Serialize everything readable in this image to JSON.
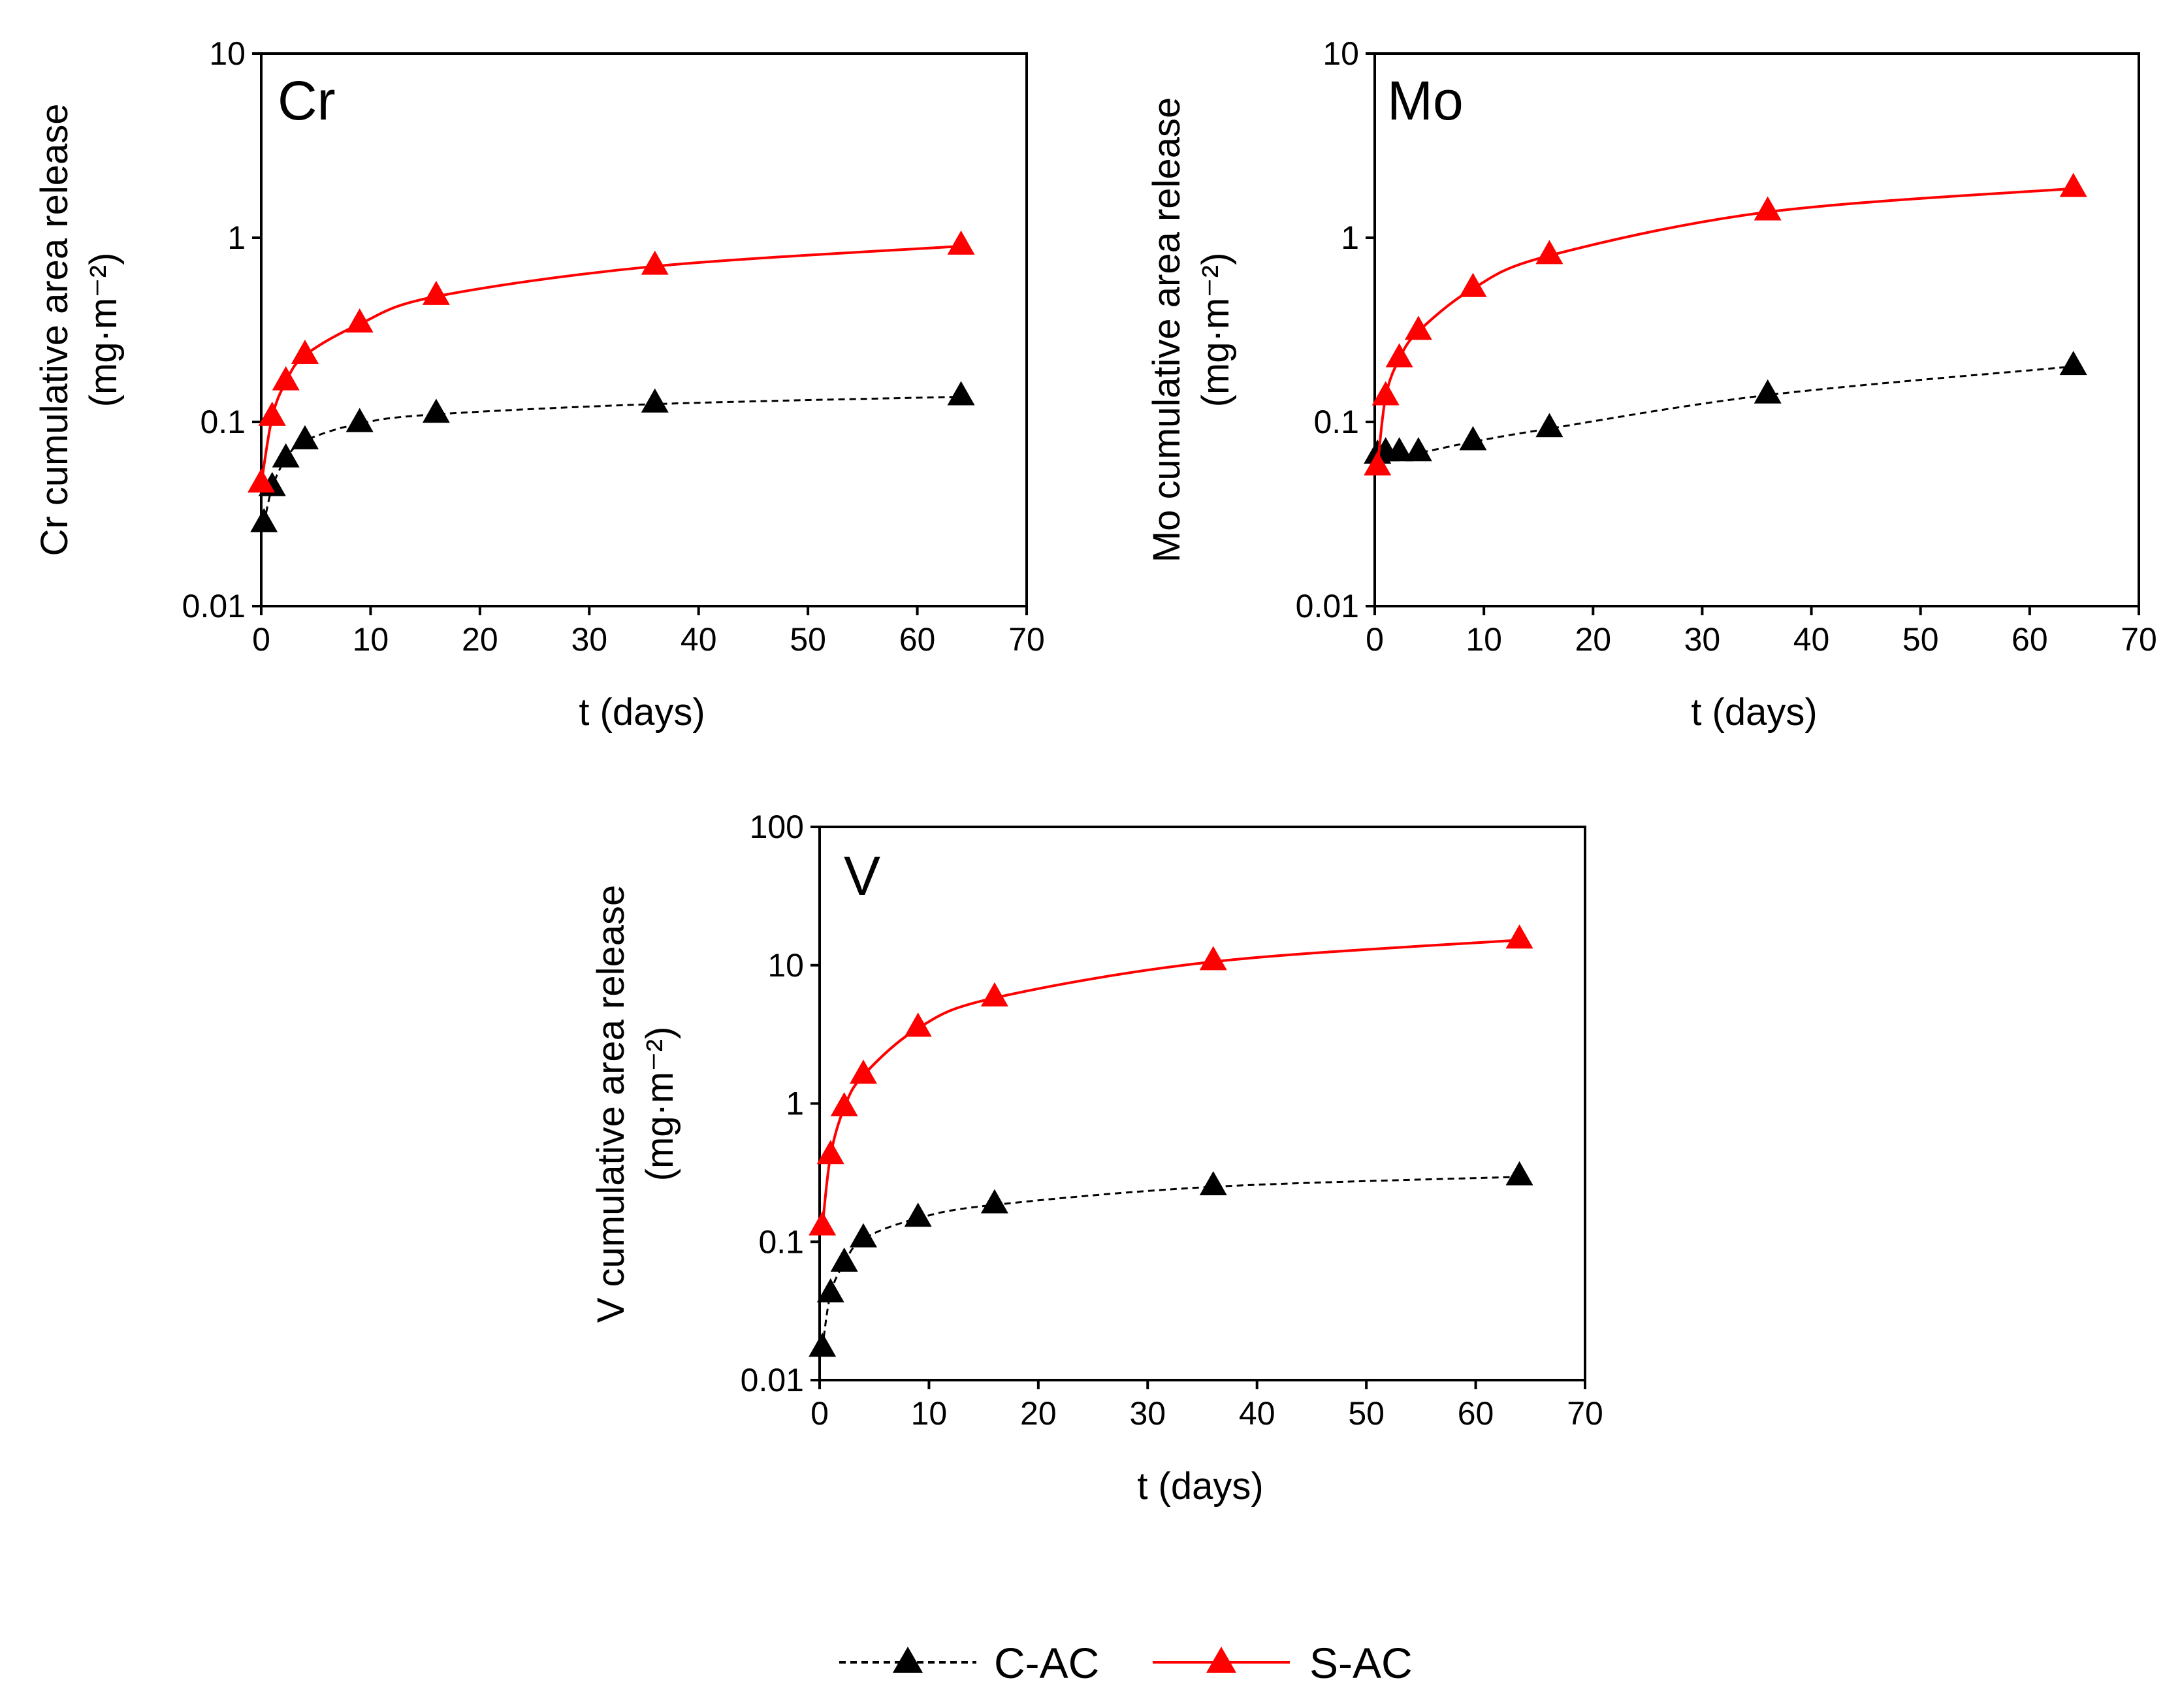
{
  "chart_data": [
    {
      "type": "line",
      "panel_label": "Cr",
      "xlabel": "t (days)",
      "ylabel": "Cr cumulative area release",
      "ylabel_units": "(mg·m⁻²)",
      "yscale": "log",
      "xlim": [
        0,
        70
      ],
      "ylim": [
        0.01,
        10
      ],
      "x_ticks": [
        "0",
        "10",
        "20",
        "30",
        "40",
        "50",
        "60",
        "70"
      ],
      "y_ticks": [
        "0.01",
        "0.1",
        "1",
        "10"
      ],
      "grid": false,
      "series": [
        {
          "name": "C-AC",
          "color": "#000000",
          "line": "dashed",
          "marker": "triangle",
          "x": [
            0.25,
            1,
            2.25,
            4,
            9,
            16,
            36,
            64
          ],
          "y": [
            0.028,
            0.044,
            0.063,
            0.079,
            0.098,
            0.11,
            0.125,
            0.137
          ]
        },
        {
          "name": "S-AC",
          "color": "#ff0000",
          "line": "solid",
          "marker": "triangle",
          "x": [
            0,
            1,
            2.25,
            4,
            9,
            16,
            36,
            64
          ],
          "y": [
            0.046,
            0.106,
            0.165,
            0.23,
            0.34,
            0.48,
            0.7,
            0.9
          ]
        }
      ]
    },
    {
      "type": "line",
      "panel_label": "Mo",
      "xlabel": "t (days)",
      "ylabel": "Mo cumulative area release",
      "ylabel_units": "(mg·m⁻²)",
      "yscale": "log",
      "xlim": [
        0,
        70
      ],
      "ylim": [
        0.01,
        10
      ],
      "x_ticks": [
        "0",
        "10",
        "20",
        "30",
        "40",
        "50",
        "60",
        "70"
      ],
      "y_ticks": [
        "0.01",
        "0.1",
        "1",
        "10"
      ],
      "grid": false,
      "series": [
        {
          "name": "C-AC",
          "color": "#000000",
          "line": "dashed",
          "marker": "triangle",
          "x": [
            0.25,
            1,
            2.25,
            4,
            9,
            16,
            36,
            64
          ],
          "y": [
            0.066,
            0.068,
            0.068,
            0.068,
            0.078,
            0.092,
            0.14,
            0.2
          ]
        },
        {
          "name": "S-AC",
          "color": "#ff0000",
          "line": "solid",
          "marker": "triangle",
          "x": [
            0.25,
            1,
            2.25,
            4,
            9,
            16,
            36,
            64
          ],
          "y": [
            0.057,
            0.137,
            0.22,
            0.31,
            0.53,
            0.8,
            1.38,
            1.85
          ]
        }
      ]
    },
    {
      "type": "line",
      "panel_label": "V",
      "xlabel": "t (days)",
      "ylabel": "V cumulative area release",
      "ylabel_units": "(mg·m⁻²)",
      "yscale": "log",
      "xlim": [
        0,
        70
      ],
      "ylim": [
        0.01,
        100
      ],
      "x_ticks": [
        "0",
        "10",
        "20",
        "30",
        "40",
        "50",
        "60",
        "70"
      ],
      "y_ticks": [
        "0.01",
        "0.1",
        "1",
        "10",
        "100"
      ],
      "grid": false,
      "series": [
        {
          "name": "C-AC",
          "color": "#000000",
          "line": "dashed",
          "marker": "triangle",
          "x": [
            0.25,
            1,
            2.25,
            4,
            9,
            16,
            36,
            64
          ],
          "y": [
            0.017,
            0.042,
            0.07,
            0.105,
            0.148,
            0.185,
            0.25,
            0.295
          ]
        },
        {
          "name": "S-AC",
          "color": "#ff0000",
          "line": "solid",
          "marker": "triangle",
          "x": [
            0.25,
            1,
            2.25,
            4,
            9,
            16,
            36,
            64
          ],
          "y": [
            0.128,
            0.42,
            0.93,
            1.6,
            3.5,
            5.8,
            10.6,
            15.2
          ]
        }
      ]
    }
  ],
  "legend": {
    "placement": "bottom-center",
    "items": [
      {
        "label": "C-AC",
        "color": "#000000",
        "line": "dashed",
        "marker": "triangle"
      },
      {
        "label": "S-AC",
        "color": "#ff0000",
        "line": "solid",
        "marker": "triangle"
      }
    ]
  }
}
